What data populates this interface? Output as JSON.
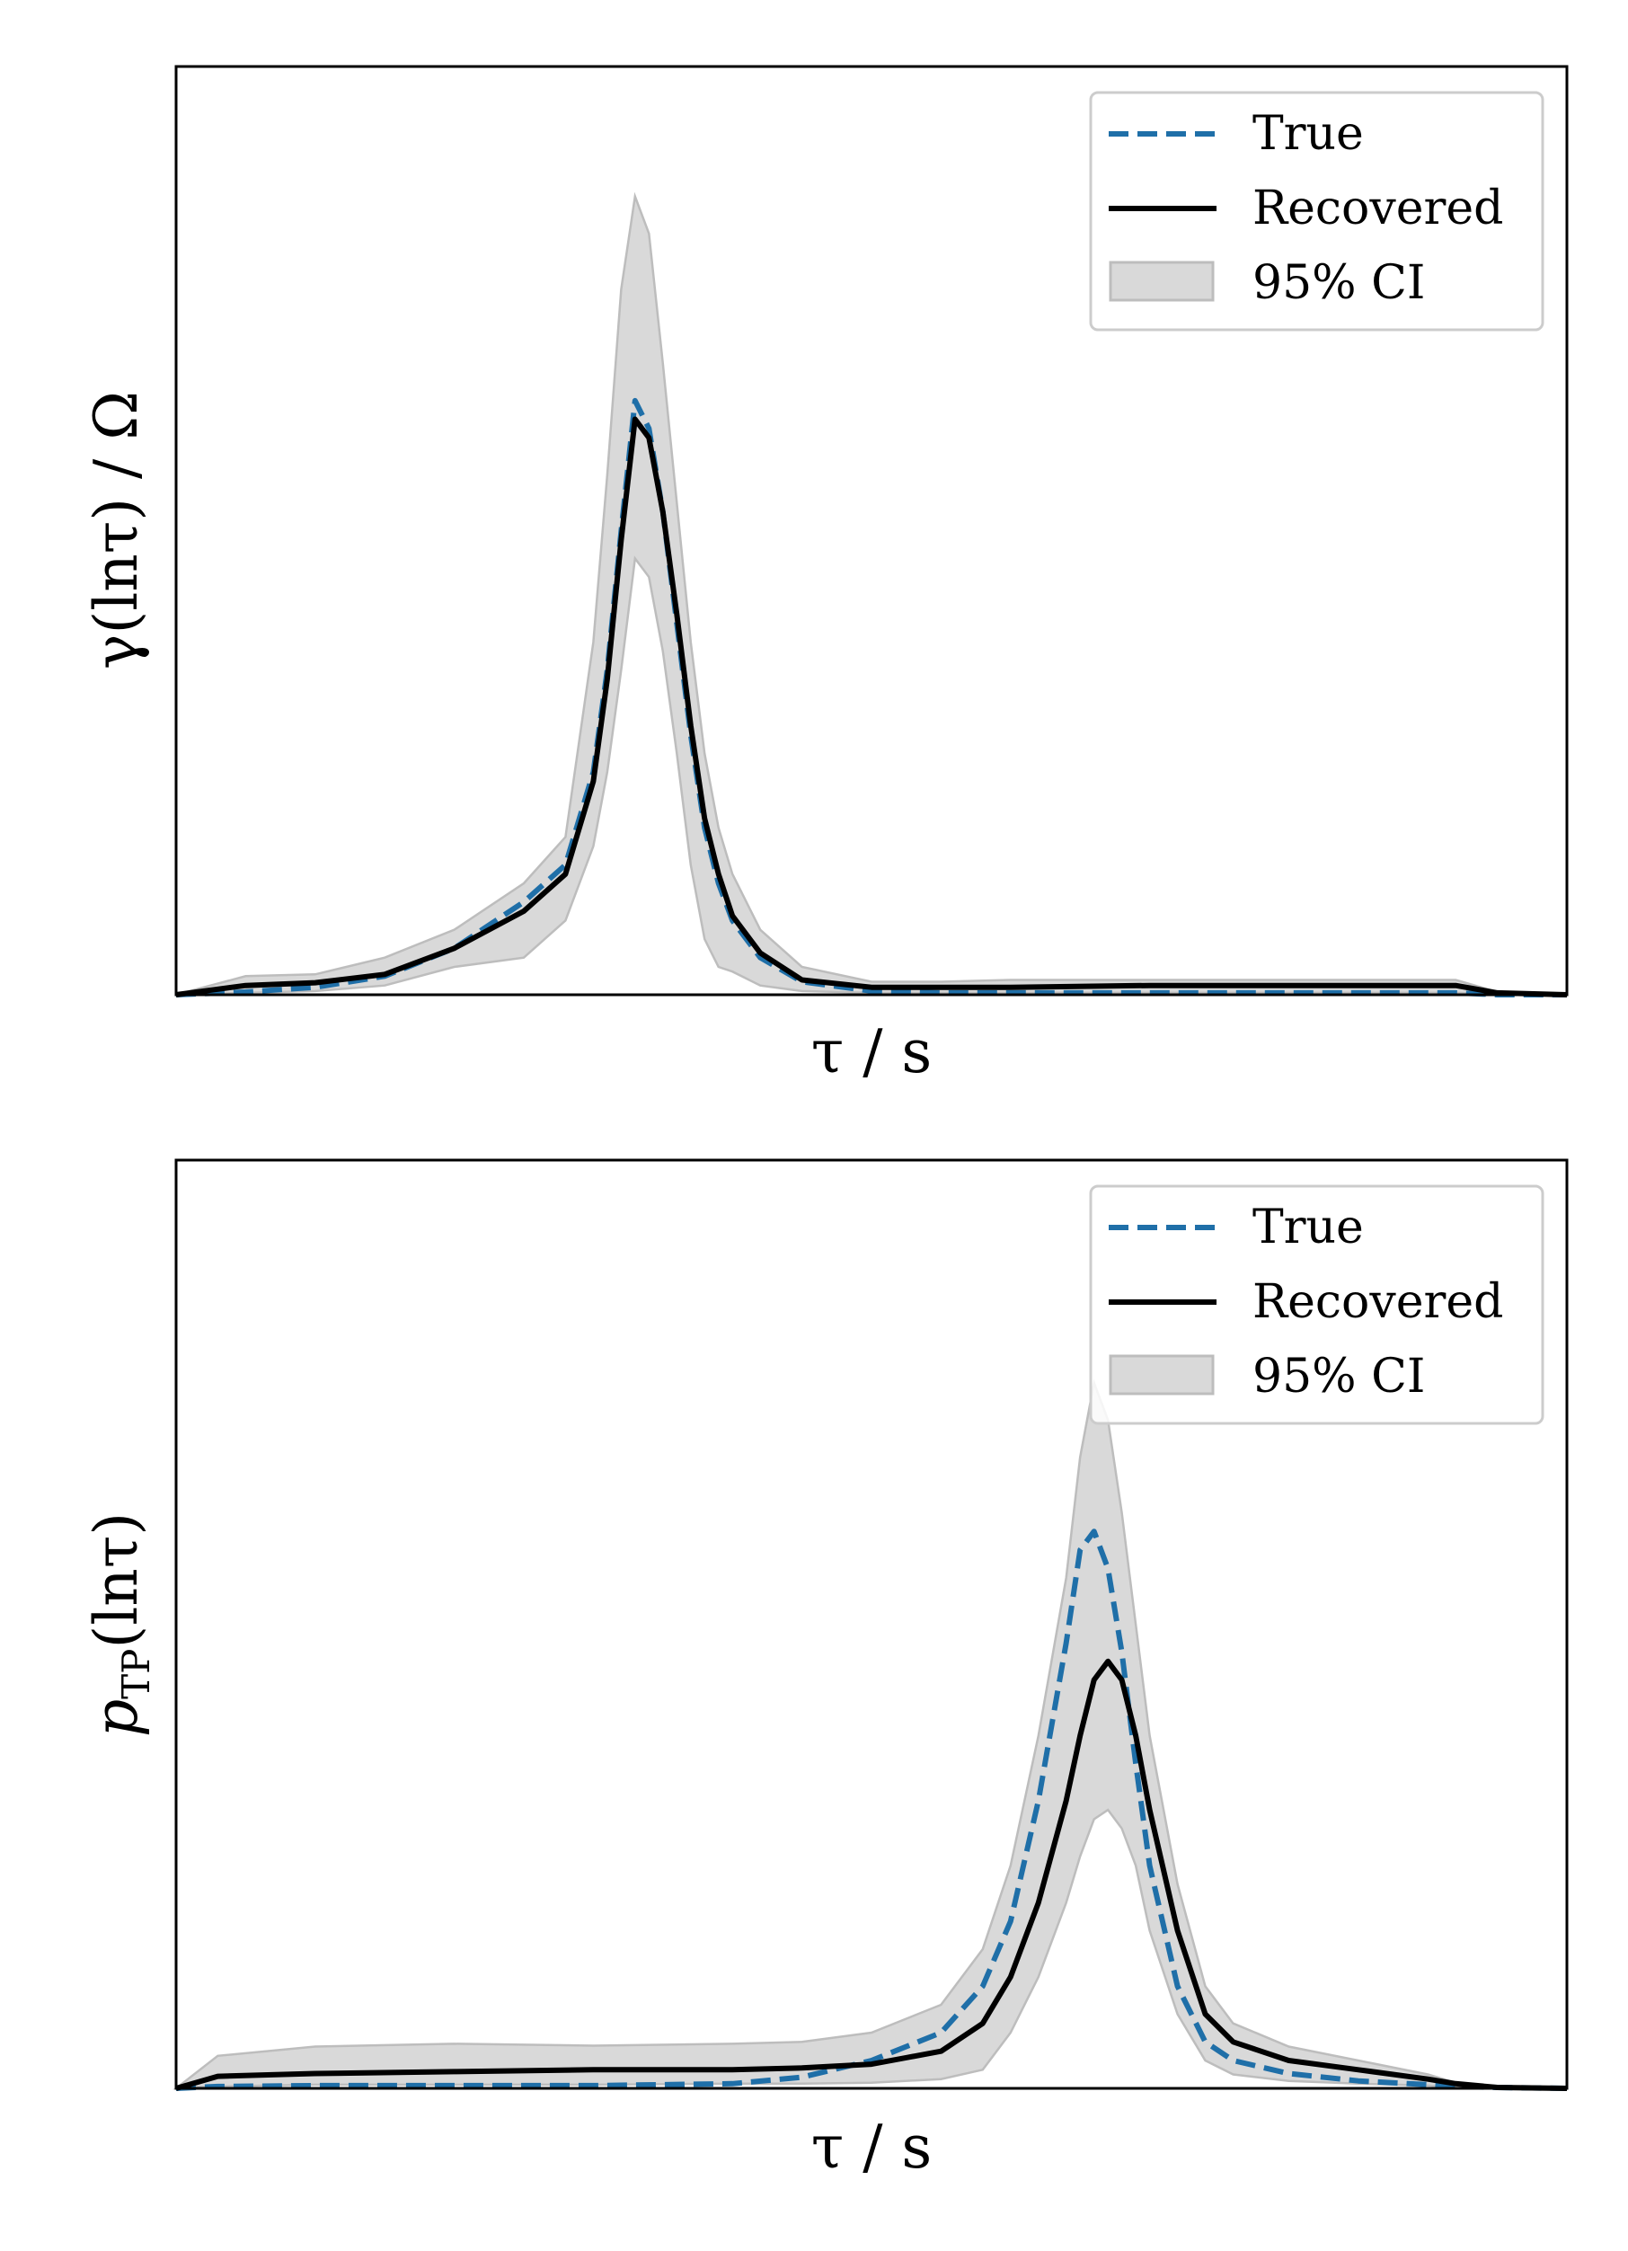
{
  "colors": {
    "true_line": "#1f6fa8",
    "recovered_line": "#000000",
    "ci_fill": "#d9d9d9",
    "ci_edge": "#bdbdbd",
    "frame": "#000000",
    "legend_edge": "#cccccc"
  },
  "chart_data": [
    {
      "type": "line",
      "xlabel": "τ / s",
      "ylabel": "γ(lnτ) / Ω",
      "x_ticks_visible": false,
      "y_ticks_visible": false,
      "grid": false,
      "legend_position": "top-right",
      "xlim": [
        0,
        1
      ],
      "ylim": [
        0,
        1
      ],
      "x": [
        0,
        0.05,
        0.1,
        0.15,
        0.2,
        0.25,
        0.28,
        0.3,
        0.31,
        0.32,
        0.33,
        0.34,
        0.35,
        0.36,
        0.37,
        0.38,
        0.39,
        0.4,
        0.42,
        0.45,
        0.5,
        0.55,
        0.6,
        0.7,
        0.8,
        0.9,
        0.92,
        0.95,
        1
      ],
      "series": [
        {
          "name": "True",
          "style": "dashed",
          "values": [
            0,
            0.003,
            0.008,
            0.02,
            0.05,
            0.1,
            0.14,
            0.24,
            0.35,
            0.5,
            0.64,
            0.61,
            0.52,
            0.4,
            0.28,
            0.18,
            0.12,
            0.08,
            0.04,
            0.014,
            0.004,
            0.002,
            0.002,
            0.002,
            0.002,
            0.002,
            0.002,
            0,
            0
          ]
        },
        {
          "name": "Recovered",
          "style": "solid",
          "values": [
            0,
            0.01,
            0.013,
            0.022,
            0.05,
            0.09,
            0.13,
            0.23,
            0.34,
            0.49,
            0.62,
            0.6,
            0.52,
            0.41,
            0.29,
            0.19,
            0.13,
            0.085,
            0.045,
            0.016,
            0.008,
            0.008,
            0.008,
            0.01,
            0.01,
            0.01,
            0.01,
            0.002,
            0
          ]
        }
      ],
      "band": {
        "name": "95% CI",
        "lower": [
          0,
          0.002,
          0.004,
          0.01,
          0.03,
          0.04,
          0.08,
          0.16,
          0.24,
          0.35,
          0.47,
          0.45,
          0.37,
          0.26,
          0.14,
          0.06,
          0.03,
          0.025,
          0.01,
          0.004,
          0.002,
          0.002,
          0.002,
          0.002,
          0.002,
          0.002,
          0.002,
          0,
          0
        ],
        "upper": [
          0,
          0.02,
          0.022,
          0.04,
          0.07,
          0.12,
          0.17,
          0.38,
          0.56,
          0.76,
          0.86,
          0.82,
          0.68,
          0.53,
          0.38,
          0.26,
          0.18,
          0.13,
          0.07,
          0.03,
          0.014,
          0.014,
          0.016,
          0.016,
          0.016,
          0.016,
          0.016,
          0.003,
          0
        ]
      },
      "legend": [
        "True",
        "Recovered",
        "95% CI"
      ]
    },
    {
      "type": "line",
      "xlabel": "τ / s",
      "ylabel": "p_TP(lnτ)",
      "ylabel_main": "p",
      "ylabel_sub": "TP",
      "ylabel_rest": "(lnτ)",
      "x_ticks_visible": false,
      "y_ticks_visible": false,
      "grid": false,
      "legend_position": "top-right",
      "xlim": [
        0,
        1
      ],
      "ylim": [
        0,
        1
      ],
      "x": [
        0,
        0.03,
        0.1,
        0.2,
        0.3,
        0.4,
        0.45,
        0.5,
        0.55,
        0.58,
        0.6,
        0.62,
        0.64,
        0.65,
        0.66,
        0.67,
        0.68,
        0.69,
        0.7,
        0.72,
        0.74,
        0.76,
        0.8,
        0.85,
        0.9,
        0.92,
        0.95,
        1
      ],
      "series": [
        {
          "name": "True",
          "style": "dashed",
          "values": [
            0,
            0.002,
            0.003,
            0.003,
            0.003,
            0.005,
            0.012,
            0.03,
            0.06,
            0.11,
            0.18,
            0.31,
            0.48,
            0.58,
            0.6,
            0.56,
            0.47,
            0.35,
            0.24,
            0.11,
            0.05,
            0.03,
            0.016,
            0.008,
            0.004,
            0.002,
            0.001,
            0
          ]
        },
        {
          "name": "Recovered",
          "style": "solid",
          "values": [
            0,
            0.013,
            0.016,
            0.018,
            0.02,
            0.02,
            0.022,
            0.026,
            0.04,
            0.07,
            0.12,
            0.2,
            0.31,
            0.38,
            0.44,
            0.46,
            0.44,
            0.38,
            0.3,
            0.17,
            0.08,
            0.05,
            0.03,
            0.02,
            0.01,
            0.005,
            0.001,
            0
          ]
        }
      ],
      "band": {
        "name": "95% CI",
        "lower": [
          0,
          0.002,
          0.004,
          0.004,
          0.004,
          0.005,
          0.005,
          0.006,
          0.01,
          0.02,
          0.06,
          0.12,
          0.2,
          0.25,
          0.29,
          0.3,
          0.28,
          0.24,
          0.17,
          0.08,
          0.03,
          0.015,
          0.008,
          0.005,
          0.003,
          0.001,
          0,
          0
        ]
      },
      "band_upper": [
        0,
        0.035,
        0.045,
        0.048,
        0.046,
        0.048,
        0.05,
        0.06,
        0.09,
        0.15,
        0.24,
        0.38,
        0.55,
        0.68,
        0.76,
        0.72,
        0.62,
        0.5,
        0.38,
        0.22,
        0.11,
        0.07,
        0.045,
        0.03,
        0.015,
        0.006,
        0.001,
        0
      ],
      "legend": [
        "True",
        "Recovered",
        "95% CI"
      ]
    }
  ]
}
